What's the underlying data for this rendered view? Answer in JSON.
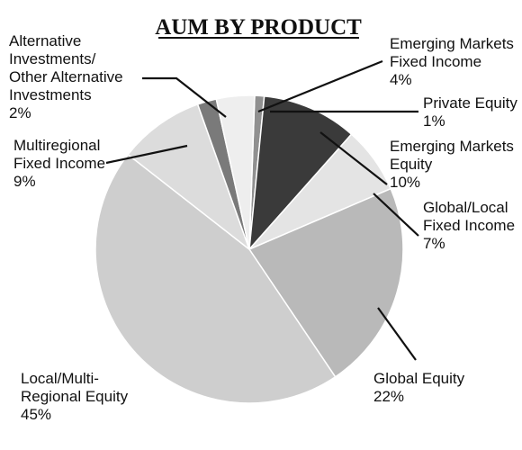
{
  "chart_data": {
    "type": "pie",
    "title": "AUM BY PRODUCT",
    "slices": [
      {
        "label_lines": [
          "Private Equity"
        ],
        "value_text": "1%",
        "value": 1,
        "color": "#909090"
      },
      {
        "label_lines": [
          "Emerging Markets",
          "Equity"
        ],
        "value_text": "10%",
        "value": 10,
        "color": "#3a3a3a"
      },
      {
        "label_lines": [
          "Global/Local",
          "Fixed Income"
        ],
        "value_text": "7%",
        "value": 7,
        "color": "#e4e4e4"
      },
      {
        "label_lines": [
          "Global Equity"
        ],
        "value_text": "22%",
        "value": 22,
        "color": "#b9b9b9"
      },
      {
        "label_lines": [
          "Local/Multi-",
          "Regional Equity"
        ],
        "value_text": "45%",
        "value": 45,
        "color": "#cecece"
      },
      {
        "label_lines": [
          "Multiregional",
          "Fixed Income"
        ],
        "value_text": "9%",
        "value": 9,
        "color": "#dcdcdc"
      },
      {
        "label_lines": [
          "Alternative",
          "Investments/",
          "Other Alternative",
          "Investments"
        ],
        "value_text": "2%",
        "value": 2,
        "color": "#7a7a7a"
      },
      {
        "label_lines": [
          "Emerging Markets",
          "Fixed Income"
        ],
        "value_text": "4%",
        "value": 4,
        "color": "#eeeeee"
      }
    ]
  }
}
